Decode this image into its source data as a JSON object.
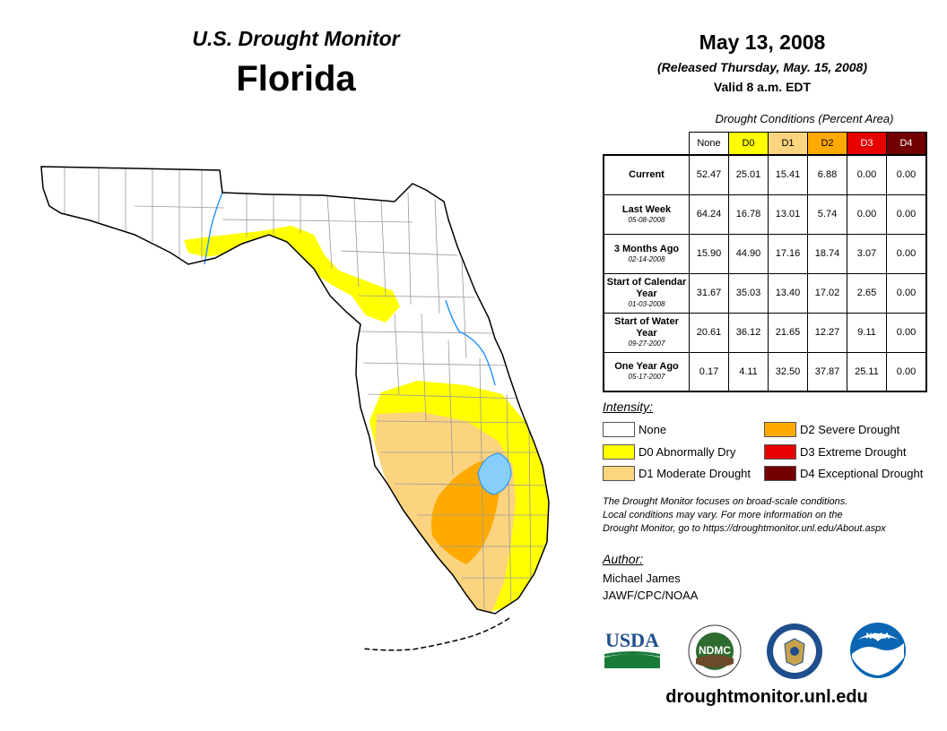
{
  "header": {
    "subtitle": "U.S. Drought Monitor",
    "state": "Florida",
    "date": "May 13, 2008",
    "released": "(Released Thursday, May. 15, 2008)",
    "valid": "Valid 8 a.m. EDT"
  },
  "table": {
    "caption": "Drought Conditions (Percent Area)",
    "columns": [
      {
        "label": "None",
        "color": "#ffffff",
        "text_color": "#000000"
      },
      {
        "label": "D0",
        "color": "#ffff00",
        "text_color": "#000000"
      },
      {
        "label": "D1",
        "color": "#fcd37f",
        "text_color": "#000000"
      },
      {
        "label": "D2",
        "color": "#ffaa00",
        "text_color": "#000000"
      },
      {
        "label": "D3",
        "color": "#e60000",
        "text_color": "#ffffff"
      },
      {
        "label": "D4",
        "color": "#730000",
        "text_color": "#ffffff"
      }
    ],
    "rows": [
      {
        "label": "Current",
        "date": "",
        "values": [
          "52.47",
          "25.01",
          "15.41",
          "6.88",
          "0.00",
          "0.00"
        ]
      },
      {
        "label": "Last Week",
        "date": "05-08-2008",
        "values": [
          "64.24",
          "16.78",
          "13.01",
          "5.74",
          "0.00",
          "0.00"
        ]
      },
      {
        "label": "3 Months Ago",
        "date": "02-14-2008",
        "values": [
          "15.90",
          "44.90",
          "17.16",
          "18.74",
          "3.07",
          "0.00"
        ]
      },
      {
        "label": "Start of Calendar Year",
        "date": "01-03-2008",
        "values": [
          "31.67",
          "35.03",
          "13.40",
          "17.02",
          "2.65",
          "0.00"
        ]
      },
      {
        "label": "Start of Water Year",
        "date": "09-27-2007",
        "values": [
          "20.61",
          "36.12",
          "21.65",
          "12.27",
          "9.11",
          "0.00"
        ]
      },
      {
        "label": "One Year Ago",
        "date": "05-17-2007",
        "values": [
          "0.17",
          "4.11",
          "32.50",
          "37.87",
          "25.11",
          "0.00"
        ]
      }
    ]
  },
  "legend": {
    "title": "Intensity:",
    "items": [
      {
        "label": "None",
        "color": "#ffffff"
      },
      {
        "label": "D0 Abnormally Dry",
        "color": "#ffff00"
      },
      {
        "label": "D1 Moderate Drought",
        "color": "#fcd37f"
      },
      {
        "label": "D2 Severe Drought",
        "color": "#ffaa00"
      },
      {
        "label": "D3 Extreme Drought",
        "color": "#e60000"
      },
      {
        "label": "D4 Exceptional Drought",
        "color": "#730000"
      }
    ]
  },
  "note": {
    "line1": "The Drought Monitor focuses on broad-scale conditions.",
    "line2": "Local conditions may vary. For more information on the",
    "line3": "Drought Monitor, go to https://droughtmonitor.unl.edu/About.aspx"
  },
  "author": {
    "title": "Author:",
    "name": "Michael James",
    "org": "JAWF/CPC/NOAA"
  },
  "logos": {
    "usda": "USDA",
    "ndmc": "NDMC",
    "noaa": "NOAA"
  },
  "footer": {
    "url": "droughtmonitor.unl.edu"
  },
  "map": {
    "colors": {
      "water": "#87cefa",
      "river": "#1e90ff"
    }
  }
}
